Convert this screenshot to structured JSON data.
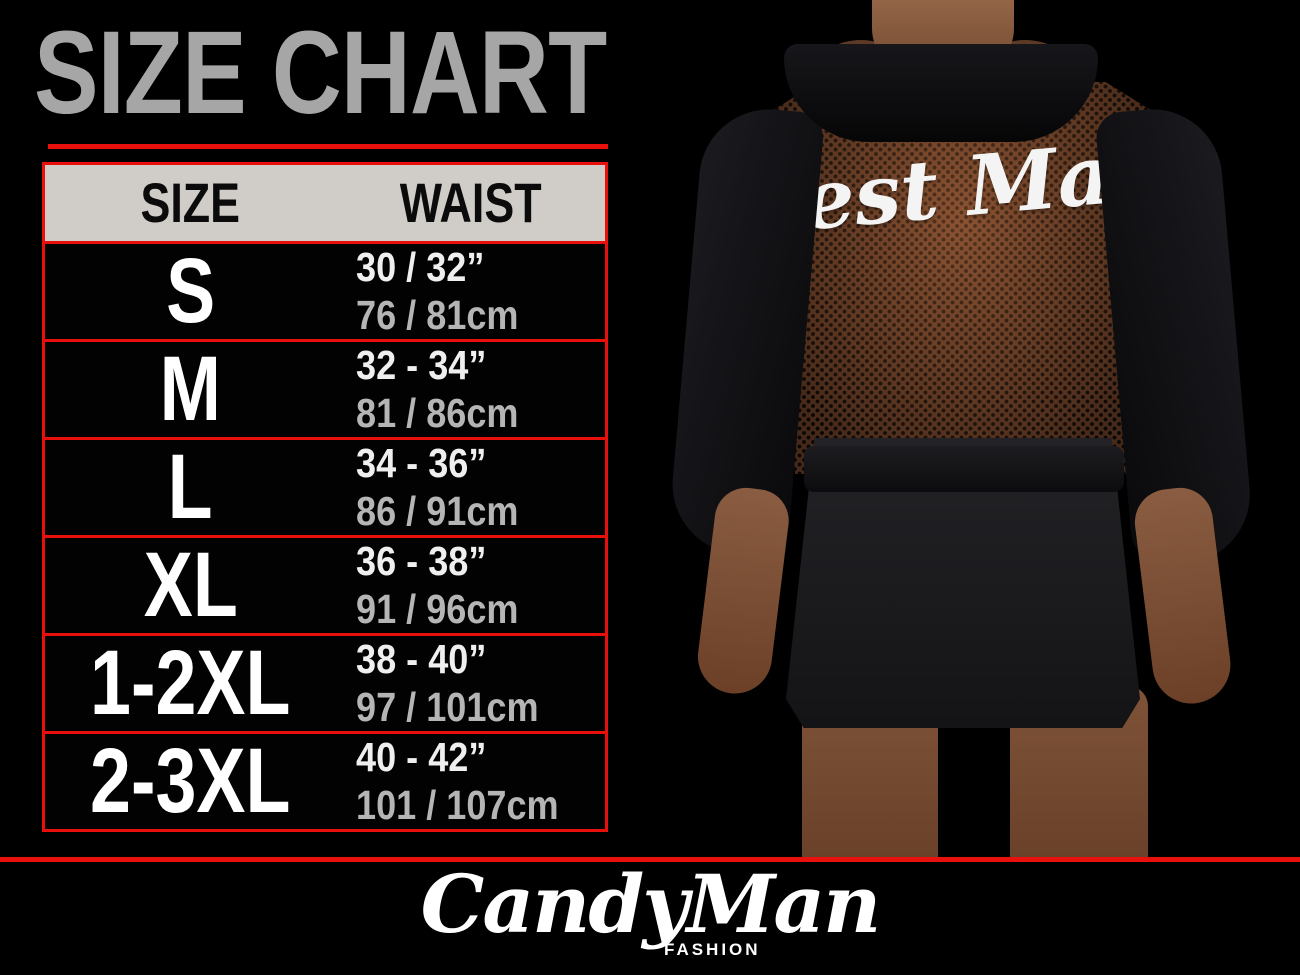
{
  "title": "SIZE CHART",
  "colors": {
    "background": "#000000",
    "accent_red": "#e8100c",
    "title_gray": "#a6a6a6",
    "header_bg": "#d0cdc9",
    "size_text": "#ffffff",
    "cm_text": "#b5b5b5"
  },
  "table": {
    "headers": {
      "size": "SIZE",
      "waist": "WAIST"
    },
    "rows": [
      {
        "size": "S",
        "waist_in": "30 / 32”",
        "waist_cm": "76 / 81cm"
      },
      {
        "size": "M",
        "waist_in": "32 - 34”",
        "waist_cm": "81 / 86cm"
      },
      {
        "size": "L",
        "waist_in": "34 - 36”",
        "waist_cm": "86 / 91cm"
      },
      {
        "size": "XL",
        "waist_in": "36 - 38”",
        "waist_cm": "91 / 96cm"
      },
      {
        "size": "1-2XL",
        "waist_in": "38 - 40”",
        "waist_cm": "97 / 101cm"
      },
      {
        "size": "2-3XL",
        "waist_in": "40 - 42”",
        "waist_cm": "101 / 107cm"
      }
    ]
  },
  "photo": {
    "garment_print": "Best Man"
  },
  "footer": {
    "brand": "CandyMan",
    "brand_sub": "FASHION"
  },
  "chart_data": {
    "type": "table",
    "title": "SIZE CHART",
    "columns": [
      "SIZE",
      "WAIST (inches)",
      "WAIST (cm)"
    ],
    "rows": [
      [
        "S",
        "30 / 32”",
        "76 / 81cm"
      ],
      [
        "M",
        "32 - 34”",
        "81 / 86cm"
      ],
      [
        "L",
        "34 - 36”",
        "86 / 91cm"
      ],
      [
        "XL",
        "36 - 38”",
        "91 / 96cm"
      ],
      [
        "1-2XL",
        "38 - 40”",
        "97 / 101cm"
      ],
      [
        "2-3XL",
        "40 - 42”",
        "101 / 107cm"
      ]
    ]
  }
}
